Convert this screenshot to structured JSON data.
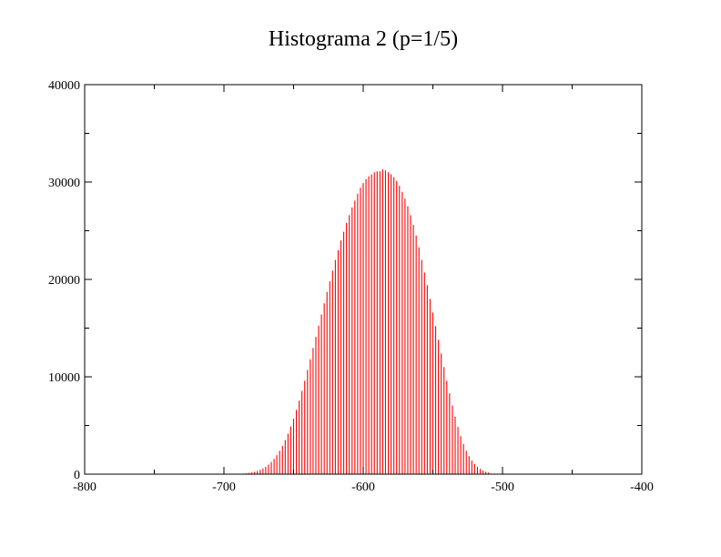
{
  "chart_data": {
    "type": "bar",
    "title": "Histograma 2 (p=1/5)",
    "xlabel": "",
    "ylabel": "",
    "xlim": [
      -800,
      -400
    ],
    "ylim": [
      0,
      40000
    ],
    "x_ticks": [
      -800,
      -700,
      -600,
      -500,
      -400
    ],
    "x_tick_labels": [
      "-800",
      "-700",
      "-600",
      "-500",
      "-400"
    ],
    "x_minor_step": 50,
    "y_ticks": [
      0,
      10000,
      20000,
      30000,
      40000
    ],
    "y_tick_labels": [
      "0",
      "10000",
      "20000",
      "30000",
      "40000"
    ],
    "y_minor_step": 5000,
    "bar_color": "#ff0000",
    "series": [
      {
        "name": "histogram",
        "x": [
          -686,
          -684,
          -682,
          -680,
          -678,
          -676,
          -674,
          -672,
          -670,
          -668,
          -666,
          -664,
          -662,
          -660,
          -658,
          -656,
          -654,
          -652,
          -650,
          -648,
          -646,
          -644,
          -642,
          -640,
          -638,
          -636,
          -634,
          -632,
          -630,
          -628,
          -626,
          -624,
          -622,
          -620,
          -618,
          -616,
          -614,
          -612,
          -610,
          -608,
          -606,
          -604,
          -602,
          -600,
          -598,
          -596,
          -594,
          -592,
          -590,
          -588,
          -586,
          -584,
          -582,
          -580,
          -578,
          -576,
          -574,
          -572,
          -570,
          -568,
          -566,
          -564,
          -562,
          -560,
          -558,
          -556,
          -554,
          -552,
          -550,
          -548,
          -546,
          -544,
          -542,
          -540,
          -538,
          -536,
          -534,
          -532,
          -530,
          -528,
          -526,
          -524,
          -522,
          -520,
          -518,
          -516,
          -514,
          -512,
          -510
        ],
        "values": [
          60,
          90,
          130,
          180,
          250,
          330,
          440,
          580,
          760,
          980,
          1250,
          1570,
          1950,
          2400,
          2900,
          3500,
          4150,
          4900,
          5700,
          6600,
          7550,
          8550,
          9600,
          10700,
          11800,
          12950,
          14100,
          15250,
          16400,
          17550,
          18700,
          19800,
          20900,
          22000,
          23000,
          24000,
          24900,
          25800,
          26600,
          27400,
          28100,
          28800,
          29400,
          29900,
          30300,
          30600,
          30800,
          31000,
          31100,
          31100,
          31300,
          31200,
          31000,
          30800,
          30500,
          30100,
          29600,
          29000,
          28300,
          27500,
          26600,
          25600,
          24500,
          23300,
          22000,
          20700,
          19400,
          18000,
          16600,
          15200,
          13800,
          12400,
          11000,
          9600,
          8300,
          7050,
          5900,
          4850,
          3900,
          3100,
          2400,
          1850,
          1400,
          1050,
          760,
          540,
          380,
          260,
          170
        ]
      }
    ]
  }
}
